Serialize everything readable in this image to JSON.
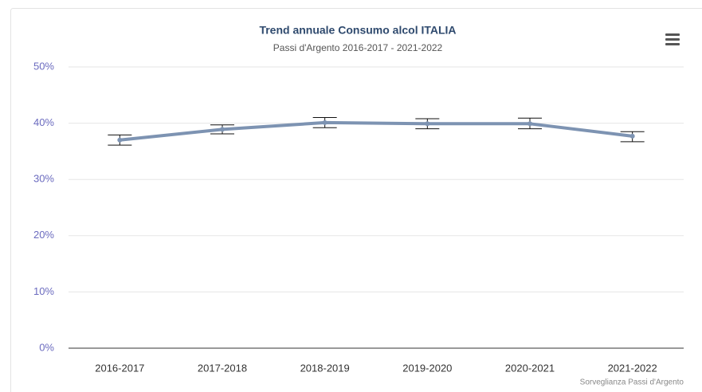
{
  "chart_data": {
    "type": "line",
    "title": "Trend annuale Consumo alcol ITALIA",
    "subtitle": "Passi d'Argento 2016-2017 - 2021-2022",
    "credits": "Sorveglianza Passi d'Argento",
    "categories": [
      "2016-2017",
      "2017-2018",
      "2018-2019",
      "2019-2020",
      "2020-2021",
      "2021-2022"
    ],
    "series": [
      {
        "color": "#7d93b2",
        "values": [
          37.0,
          38.9,
          40.1,
          39.9,
          39.9,
          37.7
        ],
        "low": [
          36.1,
          38.1,
          39.2,
          39.0,
          39.0,
          36.7
        ],
        "high": [
          37.9,
          39.7,
          41.0,
          40.8,
          40.9,
          38.5
        ]
      }
    ],
    "ylim": [
      0,
      50
    ],
    "yticks": [
      {
        "value": 0,
        "label": "0%"
      },
      {
        "value": 10,
        "label": "10%"
      },
      {
        "value": 20,
        "label": "20%"
      },
      {
        "value": 30,
        "label": "30%"
      },
      {
        "value": 40,
        "label": "40%"
      },
      {
        "value": 50,
        "label": "50%"
      }
    ],
    "grid": true
  }
}
